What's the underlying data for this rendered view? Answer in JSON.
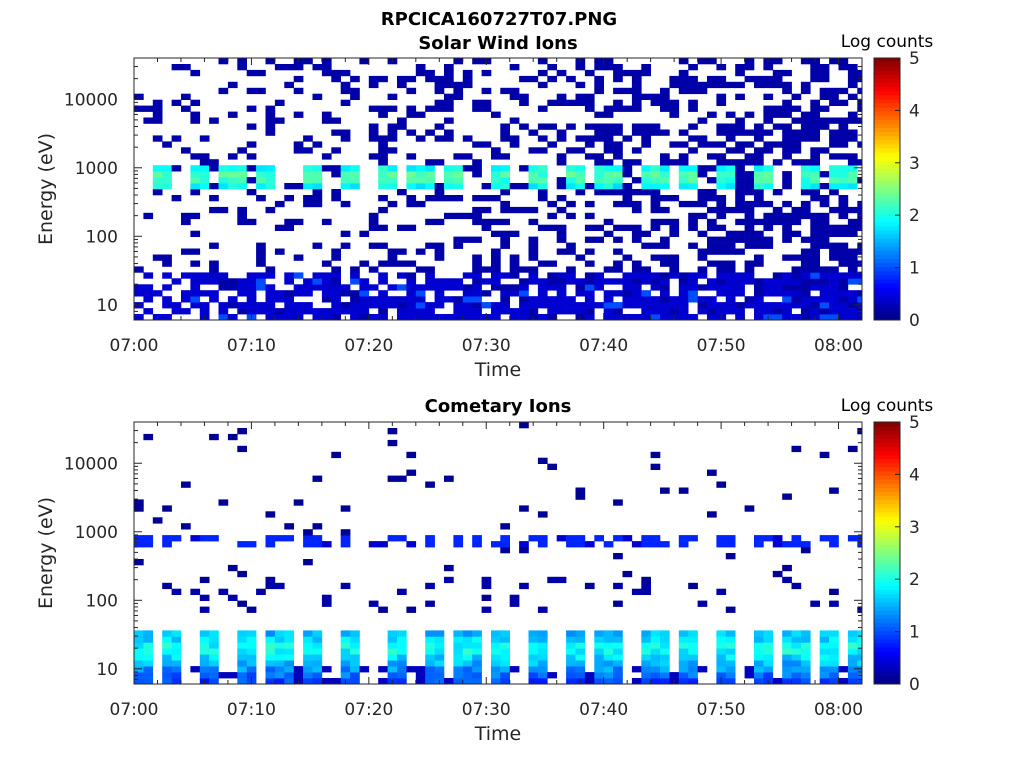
{
  "figure_title": "RPCICA160727T07.PNG",
  "chart_data": [
    {
      "type": "heatmap",
      "title": "Solar Wind Ions",
      "xlabel": "Time",
      "ylabel": "Energy (eV)",
      "x_ticks": [
        "07:00",
        "07:10",
        "07:20",
        "07:30",
        "07:40",
        "07:50",
        "08:00"
      ],
      "y_ticks": [
        "10",
        "100",
        "1000",
        "10000"
      ],
      "y_scale": "log",
      "ylim": [
        6,
        40000
      ],
      "xlim": [
        "07:00",
        "08:02"
      ],
      "colorbar": {
        "label": "Log counts",
        "ticks": [
          "0",
          "1",
          "2",
          "3",
          "4",
          "5"
        ],
        "range": [
          0,
          5
        ],
        "colormap": "jet"
      },
      "features": {
        "peak_energy_eV": 750,
        "peak_log_counts": 2.3,
        "peak_times": [
          "07:02",
          "07:05",
          "07:08",
          "07:11",
          "07:15",
          "07:18",
          "07:21",
          "07:24",
          "07:27",
          "07:31",
          "07:34",
          "07:37",
          "07:40",
          "07:44",
          "07:47",
          "07:50",
          "07:53",
          "07:57",
          "08:00"
        ],
        "low_energy_band_eV": [
          6,
          30
        ],
        "low_energy_log_counts": 0.4,
        "background_log_counts": 0.2
      }
    },
    {
      "type": "heatmap",
      "title": "Cometary Ions",
      "xlabel": "Time",
      "ylabel": "Energy (eV)",
      "x_ticks": [
        "07:00",
        "07:10",
        "07:20",
        "07:30",
        "07:40",
        "07:50",
        "08:00"
      ],
      "y_ticks": [
        "10",
        "100",
        "1000",
        "10000"
      ],
      "y_scale": "log",
      "ylim": [
        6,
        40000
      ],
      "xlim": [
        "07:00",
        "08:02"
      ],
      "colorbar": {
        "label": "Log counts",
        "ticks": [
          "0",
          "1",
          "2",
          "3",
          "4",
          "5"
        ],
        "range": [
          0,
          5
        ],
        "colormap": "jet"
      },
      "features": {
        "peak_energy_eV": 20,
        "peak_log_counts": 2.0,
        "peak_times": [
          "07:00",
          "07:03",
          "07:06",
          "07:09",
          "07:12",
          "07:15",
          "07:18",
          "07:22",
          "07:25",
          "07:28",
          "07:31",
          "07:34",
          "07:37",
          "07:40",
          "07:44",
          "07:47",
          "07:50",
          "07:53",
          "07:56",
          "07:59",
          "08:01"
        ],
        "band_750eV_log_counts": 0.8,
        "background_log_counts": 0.1
      }
    }
  ]
}
